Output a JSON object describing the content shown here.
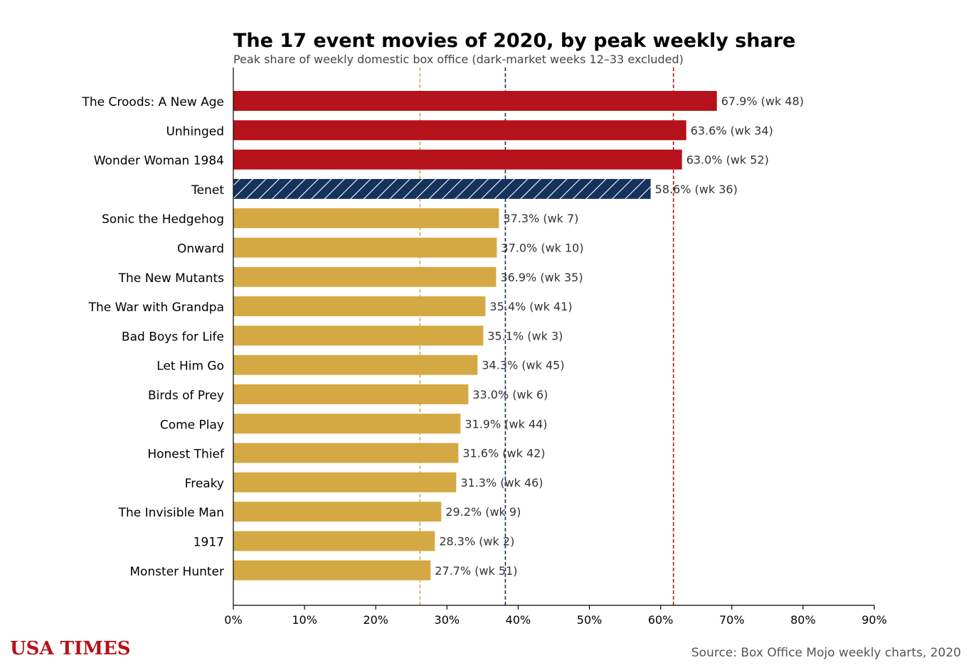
{
  "chart_data": {
    "type": "bar",
    "orientation": "horizontal",
    "title": "The 17 event movies of 2020, by peak weekly share",
    "subtitle": "Peak share of weekly domestic box office (dark-market weeks 12–33 excluded)",
    "categories": [
      "The Croods: A New Age",
      "Unhinged",
      "Wonder Woman 1984",
      "Tenet",
      "Sonic the Hedgehog",
      "Onward",
      "The New Mutants",
      "The War with Grandpa",
      "Bad Boys for Life",
      "Let Him Go",
      "Birds of Prey",
      "Come Play",
      "Honest Thief",
      "Freaky",
      "The Invisible Man",
      "1917",
      "Monster Hunter"
    ],
    "values": [
      67.9,
      63.6,
      63.0,
      58.6,
      37.3,
      37.0,
      36.9,
      35.4,
      35.1,
      34.3,
      33.0,
      31.9,
      31.6,
      31.3,
      29.2,
      28.3,
      27.7
    ],
    "value_labels": [
      "67.9%  (wk 48)",
      "63.6%  (wk 34)",
      "63.0%  (wk 52)",
      "58.6%  (wk 36)",
      "37.3%  (wk 7)",
      "37.0%  (wk 10)",
      "36.9%  (wk 35)",
      "35.4%  (wk 41)",
      "35.1%  (wk 3)",
      "34.3%  (wk 45)",
      "33.0%  (wk 6)",
      "31.9%  (wk 44)",
      "31.6%  (wk 42)",
      "31.3%  (wk 46)",
      "29.2%  (wk 9)",
      "28.3%  (wk 2)",
      "27.7%  (wk 51)"
    ],
    "bar_styles": [
      "red",
      "red",
      "red",
      "hatched-navy",
      "gold",
      "gold",
      "gold",
      "gold",
      "gold",
      "gold",
      "gold",
      "gold",
      "gold",
      "gold",
      "gold",
      "gold",
      "gold"
    ],
    "colors": {
      "red": "#b5121b",
      "navy": "#14325c",
      "gold": "#d4a944"
    },
    "xlim": [
      0,
      90
    ],
    "xticks": [
      0,
      10,
      20,
      30,
      40,
      50,
      60,
      70,
      80,
      90
    ],
    "xtick_labels": [
      "0%",
      "10%",
      "20%",
      "30%",
      "40%",
      "50%",
      "60%",
      "70%",
      "80%",
      "90%"
    ],
    "reference_lines": [
      {
        "value": 26.2,
        "color": "#d4a944"
      },
      {
        "value": 38.2,
        "color": "#14325c"
      },
      {
        "value": 61.8,
        "color": "#b5121b"
      }
    ],
    "grid": false,
    "legend": "none"
  },
  "branding": "USA TIMES",
  "source": "Source: Box Office Mojo weekly charts, 2020"
}
